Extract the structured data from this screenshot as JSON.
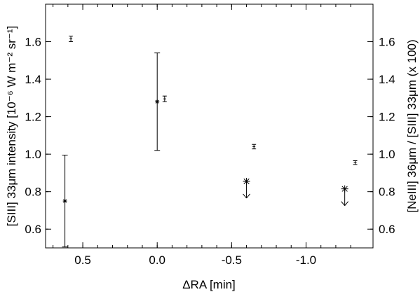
{
  "chart_data": {
    "type": "scatter",
    "xlabel": "ΔRA [min]",
    "ylabel_left": "[SIII] 33μm intensity [10⁻⁶ W m⁻² sr⁻¹]",
    "ylabel_right": "[NeIII] 36μm / [SIII] 33μm (x 100)",
    "xlim": [
      0.75,
      -1.45
    ],
    "ylim": [
      0.5,
      1.8
    ],
    "xticks": [
      0.5,
      0.0,
      -0.5,
      -1.0
    ],
    "xtick_labels": [
      "0.5",
      "0.0",
      "-0.5",
      "-1.0"
    ],
    "yticks": [
      0.6,
      0.8,
      1.0,
      1.2,
      1.4,
      1.6
    ],
    "ytick_labels": [
      "0.6",
      "0.8",
      "1.0",
      "1.2",
      "1.4",
      "1.6"
    ],
    "grid": false,
    "legend": "none",
    "series": [
      {
        "marker": "tick-errorbar",
        "points": [
          {
            "x": 0.58,
            "y": 1.615,
            "yerr": 0.015
          },
          {
            "x": -0.05,
            "y": 1.295,
            "yerr": 0.015
          },
          {
            "x": -0.65,
            "y": 1.04,
            "yerr": 0.012
          },
          {
            "x": -1.33,
            "y": 0.955,
            "yerr": 0.01
          }
        ]
      },
      {
        "marker": "asterisk",
        "points": [
          {
            "x": 0.62,
            "y": 0.75,
            "yerr": 0.245
          },
          {
            "x": 0.0,
            "y": 1.28,
            "yerr": 0.26
          }
        ]
      },
      {
        "marker": "asterisk-upper-limit",
        "points": [
          {
            "x": -0.6,
            "y": 0.855
          },
          {
            "x": -1.26,
            "y": 0.815
          }
        ]
      }
    ]
  }
}
